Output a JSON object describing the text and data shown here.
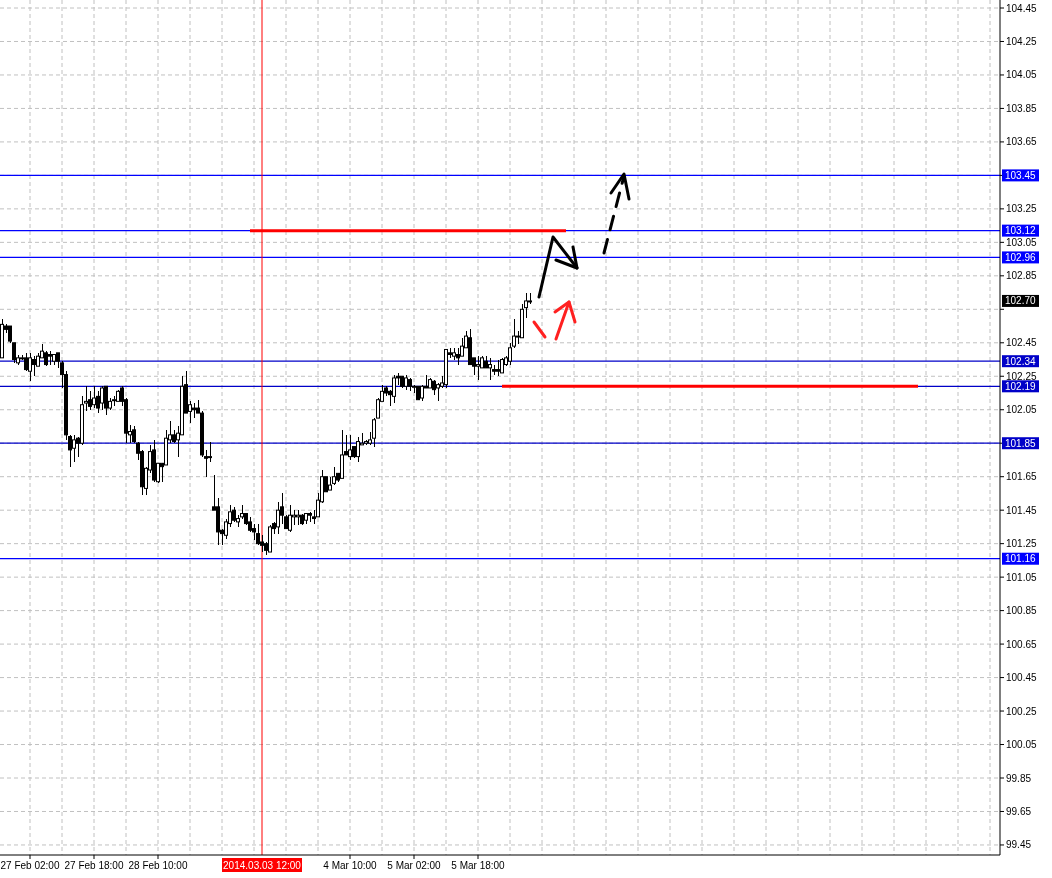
{
  "chart_data": {
    "type": "candlestick",
    "categories": [
      null,
      null,
      null,
      null,
      null,
      null,
      null,
      "27 Feb 02:00",
      null,
      null,
      null,
      null,
      null,
      null,
      null,
      null,
      null,
      null,
      null,
      null,
      null,
      null,
      null,
      "27 Feb 18:00",
      null,
      null,
      null,
      null,
      null,
      null,
      null,
      null,
      null,
      null,
      null,
      null,
      null,
      null,
      null,
      "28 Feb 10:00",
      null,
      null,
      null,
      null,
      null,
      null,
      null,
      null,
      null,
      null,
      null,
      null,
      null,
      null,
      null,
      null,
      null,
      null,
      null,
      null,
      null,
      null,
      null,
      null,
      null,
      "2014.03.03 12:00",
      null,
      null,
      null,
      null,
      null,
      null,
      null,
      null,
      null,
      null,
      null,
      null,
      null,
      null,
      null,
      null,
      null,
      null,
      null,
      null,
      null,
      "4 Mar 10:00",
      null,
      null,
      null,
      null,
      null,
      null,
      null,
      null,
      null,
      null,
      null,
      null,
      null,
      null,
      null,
      "5 Mar 02:00",
      null,
      null,
      null,
      null,
      null,
      null,
      null,
      null,
      null,
      null,
      null,
      null,
      null,
      null,
      null,
      "5 Mar 18:00",
      null,
      null,
      null,
      null,
      null,
      null,
      null,
      null,
      null,
      null,
      null,
      null,
      null,
      null,
      null,
      null,
      null,
      null,
      null,
      null,
      null,
      null,
      null,
      null,
      null,
      null,
      null,
      null,
      null,
      null,
      null,
      null,
      null,
      null,
      null,
      null,
      null,
      null,
      null,
      null,
      null,
      null,
      null,
      null,
      null,
      null,
      null,
      null,
      null,
      null,
      null,
      null,
      null,
      null,
      null,
      null,
      null,
      null,
      null,
      null,
      null,
      null,
      null,
      null,
      null,
      null,
      null,
      null,
      null,
      null,
      null,
      null,
      null,
      null,
      null,
      null,
      null,
      null,
      null,
      null,
      null,
      null,
      null,
      null,
      null,
      null,
      null,
      null,
      null,
      null,
      null,
      null,
      null,
      null,
      null,
      null,
      null,
      null,
      null,
      null,
      null,
      null,
      null,
      null,
      null,
      null,
      null,
      null,
      null,
      null,
      null,
      null,
      null,
      null,
      null,
      null,
      null,
      null,
      null,
      null,
      null,
      null,
      null,
      null,
      null,
      null,
      null,
      null,
      null,
      null
    ],
    "ohlc": [
      [
        102.36,
        102.59,
        102.36,
        102.56
      ],
      [
        102.55,
        102.56,
        102.51,
        102.53
      ],
      [
        102.55,
        102.55,
        102.45,
        102.46
      ],
      [
        102.45,
        102.45,
        102.33,
        102.35
      ],
      [
        102.33,
        102.38,
        102.32,
        102.36
      ],
      [
        102.36,
        102.38,
        102.35,
        102.36
      ],
      [
        102.36,
        102.39,
        102.28,
        102.29
      ],
      [
        102.28,
        102.39,
        102.22,
        102.36
      ],
      [
        102.35,
        102.37,
        102.25,
        102.32
      ],
      [
        102.31,
        102.39,
        102.31,
        102.37
      ],
      [
        102.36,
        102.44,
        102.36,
        102.4
      ],
      [
        102.39,
        102.4,
        102.31,
        102.32
      ],
      [
        102.38,
        102.4,
        102.32,
        102.37
      ],
      [
        102.34,
        102.38,
        102.32,
        102.38
      ],
      [
        102.39,
        102.39,
        102.3,
        102.34
      ],
      [
        102.33,
        102.34,
        102.18,
        102.26
      ],
      [
        102.26,
        102.28,
        101.87,
        101.9
      ],
      [
        101.89,
        101.9,
        101.71,
        101.81
      ],
      [
        101.82,
        101.9,
        101.74,
        101.87
      ],
      [
        101.88,
        101.89,
        101.77,
        101.85
      ],
      [
        101.85,
        102.13,
        101.84,
        102.08
      ],
      [
        102.09,
        102.19,
        102.04,
        102.1
      ],
      [
        102.11,
        102.16,
        102.05,
        102.07
      ],
      [
        102.08,
        102.19,
        102.06,
        102.12
      ],
      [
        102.13,
        102.16,
        102.03,
        102.06
      ],
      [
        102.09,
        102.19,
        102.05,
        102.18
      ],
      [
        102.19,
        102.19,
        102.02,
        102.06
      ],
      [
        102.06,
        102.12,
        102.05,
        102.1
      ],
      [
        102.11,
        102.13,
        102.07,
        102.11
      ],
      [
        102.1,
        102.17,
        102.1,
        102.16
      ],
      [
        102.18,
        102.19,
        102.07,
        102.1
      ],
      [
        102.11,
        102.12,
        101.85,
        101.91
      ],
      [
        101.9,
        101.96,
        101.85,
        101.92
      ],
      [
        101.93,
        101.95,
        101.85,
        101.86
      ],
      [
        101.85,
        101.86,
        101.75,
        101.79
      ],
      [
        101.8,
        101.81,
        101.54,
        101.59
      ],
      [
        101.58,
        101.71,
        101.54,
        101.7
      ],
      [
        101.69,
        101.84,
        101.67,
        101.8
      ],
      [
        101.81,
        101.87,
        101.62,
        101.63
      ],
      [
        101.62,
        101.73,
        101.61,
        101.73
      ],
      [
        101.73,
        101.73,
        101.62,
        101.71
      ],
      [
        101.72,
        101.93,
        101.72,
        101.88
      ],
      [
        101.87,
        101.98,
        101.85,
        101.9
      ],
      [
        101.9,
        101.93,
        101.85,
        101.86
      ],
      [
        101.87,
        101.95,
        101.77,
        101.91
      ],
      [
        101.9,
        102.25,
        101.9,
        102.19
      ],
      [
        102.2,
        102.28,
        102.03,
        102.03
      ],
      [
        102.04,
        102.1,
        101.97,
        102.08
      ],
      [
        102.06,
        102.09,
        102.0,
        102.05
      ],
      [
        102.06,
        102.11,
        102.03,
        102.03
      ],
      [
        102.03,
        102.04,
        101.77,
        101.78
      ],
      [
        101.77,
        101.81,
        101.65,
        101.76
      ],
      [
        101.77,
        101.86,
        101.74,
        101.77
      ],
      [
        101.47,
        101.66,
        101.45,
        101.45
      ],
      [
        101.47,
        101.52,
        101.24,
        101.32
      ],
      [
        101.33,
        101.34,
        101.24,
        101.31
      ],
      [
        101.3,
        101.4,
        101.28,
        101.38
      ],
      [
        101.37,
        101.48,
        101.35,
        101.44
      ],
      [
        101.45,
        101.47,
        101.38,
        101.39
      ],
      [
        101.38,
        101.42,
        101.35,
        101.4
      ],
      [
        101.41,
        101.48,
        101.4,
        101.43
      ],
      [
        101.43,
        101.43,
        101.36,
        101.37
      ],
      [
        101.38,
        101.41,
        101.32,
        101.33
      ],
      [
        101.34,
        101.37,
        101.27,
        101.32
      ],
      [
        101.31,
        101.37,
        101.24,
        101.25
      ],
      [
        101.26,
        101.3,
        101.2,
        101.24
      ],
      [
        101.25,
        101.26,
        101.18,
        101.21
      ],
      [
        101.2,
        101.36,
        101.2,
        101.35
      ],
      [
        101.37,
        101.38,
        101.31,
        101.34
      ],
      [
        101.35,
        101.5,
        101.31,
        101.45
      ],
      [
        101.47,
        101.55,
        101.37,
        101.42
      ],
      [
        101.41,
        101.42,
        101.34,
        101.34
      ],
      [
        101.33,
        101.48,
        101.32,
        101.42
      ],
      [
        101.41,
        101.45,
        101.36,
        101.42
      ],
      [
        101.41,
        101.45,
        101.36,
        101.42
      ],
      [
        101.42,
        101.43,
        101.36,
        101.37
      ],
      [
        101.39,
        101.43,
        101.37,
        101.43
      ],
      [
        101.43,
        101.44,
        101.38,
        101.42
      ],
      [
        101.41,
        101.45,
        101.37,
        101.4
      ],
      [
        101.41,
        101.55,
        101.41,
        101.51
      ],
      [
        101.5,
        101.69,
        101.49,
        101.65
      ],
      [
        101.65,
        101.65,
        101.56,
        101.56
      ],
      [
        101.57,
        101.65,
        101.57,
        101.6
      ],
      [
        101.61,
        101.71,
        101.6,
        101.65
      ],
      [
        101.67,
        101.67,
        101.62,
        101.63
      ],
      [
        101.64,
        101.93,
        101.64,
        101.78
      ],
      [
        101.8,
        101.9,
        101.78,
        101.78
      ],
      [
        101.77,
        101.9,
        101.75,
        101.81
      ],
      [
        101.83,
        101.83,
        101.76,
        101.77
      ],
      [
        101.77,
        101.89,
        101.74,
        101.86
      ],
      [
        101.84,
        101.91,
        101.84,
        101.85
      ],
      [
        101.85,
        101.87,
        101.84,
        101.86
      ],
      [
        101.85,
        101.92,
        101.84,
        101.87
      ],
      [
        101.88,
        102.0,
        101.83,
        101.99
      ],
      [
        102.0,
        102.12,
        102.0,
        102.11
      ],
      [
        102.1,
        102.2,
        102.1,
        102.16
      ],
      [
        102.18,
        102.19,
        102.13,
        102.15
      ],
      [
        102.16,
        102.17,
        102.07,
        102.14
      ],
      [
        102.13,
        102.26,
        102.09,
        102.24
      ],
      [
        102.25,
        102.27,
        102.2,
        102.24
      ],
      [
        102.25,
        102.25,
        102.18,
        102.19
      ],
      [
        102.19,
        102.26,
        102.17,
        102.24
      ],
      [
        102.23,
        102.24,
        102.16,
        102.19
      ],
      [
        102.19,
        102.2,
        102.15,
        102.19
      ],
      [
        102.19,
        102.19,
        102.11,
        102.11
      ],
      [
        102.12,
        102.2,
        102.1,
        102.19
      ],
      [
        102.19,
        102.26,
        102.18,
        102.18
      ],
      [
        102.18,
        102.24,
        102.18,
        102.23
      ],
      [
        102.22,
        102.23,
        102.14,
        102.17
      ],
      [
        102.18,
        102.21,
        102.1,
        102.2
      ],
      [
        102.19,
        102.25,
        102.18,
        102.21
      ],
      [
        102.2,
        102.41,
        102.18,
        102.41
      ],
      [
        102.39,
        102.42,
        102.36,
        102.38
      ],
      [
        102.37,
        102.42,
        102.35,
        102.39
      ],
      [
        102.38,
        102.42,
        102.32,
        102.36
      ],
      [
        102.37,
        102.48,
        102.37,
        102.43
      ],
      [
        102.42,
        102.52,
        102.42,
        102.49
      ],
      [
        102.48,
        102.53,
        102.32,
        102.32
      ],
      [
        102.36,
        102.36,
        102.26,
        102.31
      ],
      [
        102.31,
        102.37,
        102.23,
        102.32
      ],
      [
        102.3,
        102.37,
        102.3,
        102.36
      ],
      [
        102.34,
        102.37,
        102.3,
        102.3
      ],
      [
        102.3,
        102.36,
        102.23,
        102.32
      ],
      [
        102.29,
        102.32,
        102.26,
        102.28
      ],
      [
        102.29,
        102.35,
        102.25,
        102.28
      ],
      [
        102.27,
        102.36,
        102.27,
        102.35
      ],
      [
        102.32,
        102.37,
        102.31,
        102.36
      ],
      [
        102.34,
        102.45,
        102.32,
        102.42
      ],
      [
        102.43,
        102.59,
        102.42,
        102.49
      ],
      [
        102.49,
        102.52,
        102.44,
        102.49
      ],
      [
        102.48,
        102.68,
        102.48,
        102.65
      ],
      [
        102.66,
        102.75,
        102.6,
        102.7
      ],
      [
        102.7,
        102.75,
        102.68,
        102.7
      ],
      null,
      null,
      null,
      null,
      null,
      null,
      null,
      null,
      null,
      null,
      null,
      null,
      null,
      null,
      null,
      null,
      null,
      null,
      null,
      null,
      null,
      null,
      null,
      null,
      null,
      null,
      null,
      null,
      null,
      null,
      null,
      null,
      null,
      null,
      null,
      null,
      null,
      null,
      null,
      null,
      null,
      null,
      null,
      null,
      null,
      null,
      null,
      null,
      null,
      null,
      null,
      null,
      null,
      null,
      null,
      null,
      null,
      null,
      null,
      null,
      null,
      null,
      null,
      null,
      null,
      null,
      null,
      null,
      null,
      null,
      null,
      null,
      null,
      null,
      null,
      null,
      null,
      null,
      null,
      null,
      null,
      null,
      null,
      null,
      null,
      null,
      null,
      null,
      null,
      null,
      null,
      null,
      null,
      null,
      null,
      null,
      null,
      null,
      null,
      null,
      null,
      null,
      null,
      null,
      null,
      null,
      null,
      null,
      null,
      null,
      null,
      null,
      null,
      null,
      null,
      null,
      null
    ],
    "series": [
      {
        "type": "line",
        "color": "#ff0000",
        "values": [
          null,
          null,
          null,
          null,
          null,
          null,
          null,
          null,
          null,
          null,
          null,
          null,
          null,
          null,
          null,
          null,
          null,
          null,
          null,
          null,
          null,
          null,
          null,
          null,
          null,
          null,
          null,
          null,
          null,
          null,
          null,
          null,
          null,
          null,
          null,
          null,
          null,
          null,
          null,
          null,
          null,
          null,
          null,
          null,
          null,
          null,
          null,
          null,
          null,
          null,
          null,
          null,
          null,
          null,
          null,
          null,
          null,
          null,
          null,
          null,
          null,
          null,
          103.12,
          103.12,
          103.12,
          103.12,
          103.12,
          103.12,
          103.12,
          103.12,
          103.12,
          103.12,
          103.12,
          103.12,
          103.12,
          103.12,
          103.12,
          103.12,
          103.12,
          103.12,
          103.12,
          103.12,
          103.12,
          103.12,
          103.12,
          103.12,
          103.12,
          103.12,
          103.12,
          103.12,
          103.12,
          103.12,
          103.12,
          103.12,
          103.12,
          103.12,
          103.12,
          103.12,
          103.12,
          103.12,
          103.12,
          103.12,
          103.12,
          103.12,
          103.12,
          103.12,
          103.12,
          103.12,
          103.12,
          103.12,
          103.12,
          103.12,
          103.12,
          103.12,
          103.12,
          103.12,
          103.12,
          103.12,
          103.12,
          103.12,
          103.12,
          103.12,
          103.12,
          103.12,
          103.12,
          103.12,
          103.12,
          103.12,
          103.12,
          103.12,
          103.12,
          103.12,
          103.12,
          103.12,
          103.12,
          103.12,
          103.12,
          103.12,
          103.12,
          103.12,
          103.12,
          103.12,
          null,
          null,
          null,
          null,
          null,
          null,
          null,
          null,
          null,
          null,
          null,
          null,
          null,
          null,
          null,
          null,
          null,
          null,
          null,
          null,
          null,
          null,
          null,
          null,
          null,
          null,
          null,
          null,
          null,
          null,
          null,
          null,
          null,
          null,
          null,
          null,
          null,
          null,
          null,
          null,
          null,
          null,
          null,
          null,
          null,
          null,
          null,
          null,
          null,
          null,
          null,
          null,
          null,
          null,
          null,
          null,
          null,
          null,
          null,
          null,
          null,
          null,
          null,
          null,
          null,
          null,
          null,
          null,
          null,
          null,
          null,
          null,
          null,
          null,
          null,
          null,
          null,
          null,
          null,
          null,
          null,
          null,
          null,
          null,
          null,
          null,
          null,
          null,
          null,
          null,
          null,
          null,
          null,
          null,
          null,
          null,
          null,
          null,
          null,
          null,
          null,
          null,
          null,
          null,
          null,
          null,
          null,
          null
        ]
      },
      {
        "type": "line",
        "color": "#ff0000",
        "values": [
          null,
          null,
          null,
          null,
          null,
          null,
          null,
          null,
          null,
          null,
          null,
          null,
          null,
          null,
          null,
          null,
          null,
          null,
          null,
          null,
          null,
          null,
          null,
          null,
          null,
          null,
          null,
          null,
          null,
          null,
          null,
          null,
          null,
          null,
          null,
          null,
          null,
          null,
          null,
          null,
          null,
          null,
          null,
          null,
          null,
          null,
          null,
          null,
          null,
          null,
          null,
          null,
          null,
          null,
          null,
          null,
          null,
          null,
          null,
          null,
          null,
          null,
          null,
          null,
          null,
          null,
          null,
          null,
          null,
          null,
          null,
          null,
          null,
          null,
          null,
          null,
          null,
          null,
          null,
          null,
          null,
          null,
          null,
          null,
          null,
          null,
          null,
          null,
          null,
          null,
          null,
          null,
          null,
          null,
          null,
          null,
          null,
          null,
          null,
          null,
          null,
          null,
          null,
          null,
          null,
          null,
          null,
          null,
          null,
          null,
          null,
          null,
          null,
          null,
          null,
          null,
          null,
          null,
          null,
          null,
          null,
          null,
          null,
          null,
          null,
          102.19,
          102.19,
          102.19,
          102.19,
          102.19,
          102.19,
          102.19,
          102.19,
          102.19,
          102.19,
          102.19,
          102.19,
          102.19,
          102.19,
          102.19,
          102.19,
          102.19,
          102.19,
          102.19,
          102.19,
          102.19,
          102.19,
          102.19,
          102.19,
          102.19,
          102.19,
          102.19,
          102.19,
          102.19,
          102.19,
          102.19,
          102.19,
          102.19,
          102.19,
          102.19,
          102.19,
          102.19,
          102.19,
          102.19,
          102.19,
          102.19,
          102.19,
          102.19,
          102.19,
          102.19,
          102.19,
          102.19,
          102.19,
          102.19,
          102.19,
          102.19,
          102.19,
          102.19,
          102.19,
          102.19,
          102.19,
          102.19,
          102.19,
          102.19,
          102.19,
          102.19,
          102.19,
          102.19,
          102.19,
          102.19,
          102.19,
          102.19,
          102.19,
          102.19,
          102.19,
          102.19,
          102.19,
          102.19,
          102.19,
          102.19,
          102.19,
          102.19,
          102.19,
          102.19,
          102.19,
          102.19,
          102.19,
          102.19,
          102.19,
          102.19,
          102.19,
          102.19,
          102.19,
          102.19,
          102.19,
          102.19,
          102.19,
          102.19,
          102.19,
          102.19,
          102.19,
          102.19,
          102.19,
          102.19,
          102.19,
          102.19,
          102.19,
          102.19,
          102.19,
          102.19,
          null,
          null,
          null,
          null,
          null,
          null,
          null,
          null,
          null,
          null,
          null,
          null,
          null,
          null,
          null,
          null,
          null,
          null,
          null,
          null
        ]
      }
    ],
    "ylim": [
      99.39,
      104.45
    ],
    "yticks": [
      99.45,
      99.65,
      99.85,
      100.05,
      100.25,
      100.45,
      100.65,
      100.85,
      101.05,
      101.25,
      101.45,
      101.65,
      101.85,
      102.05,
      102.25,
      102.45,
      {
        "value": 102.65,
        "label": null
      },
      102.85,
      103.05,
      103.25,
      103.45,
      103.65,
      103.85,
      104.05,
      104.25,
      104.45
    ],
    "grid": true,
    "ref_lines": [
      {
        "axis": "y",
        "value": 103.45,
        "label": "103.45",
        "color": "#0000ff"
      },
      {
        "axis": "y",
        "value": 103.12,
        "label": "103.12",
        "color": "#0000ff"
      },
      {
        "axis": "y",
        "value": 102.96,
        "label": "102.96",
        "color": "#0000ff"
      },
      {
        "axis": "y",
        "value": 102.34,
        "label": "102.34",
        "color": "#0000c8"
      },
      {
        "axis": "y",
        "value": 102.19,
        "label": "102.19",
        "color": "#0000c8"
      },
      {
        "axis": "y",
        "value": 101.85,
        "label": "101.85",
        "color": "#0000c8"
      },
      {
        "axis": "y",
        "value": 101.16,
        "label": "101.16",
        "color": "#0000ff"
      },
      {
        "axis": "x",
        "value": "2014.03.03 12:00",
        "color": "#ff0000"
      }
    ],
    "annotations": [
      {
        "text": "102.70",
        "y": 102.7
      }
    ]
  }
}
